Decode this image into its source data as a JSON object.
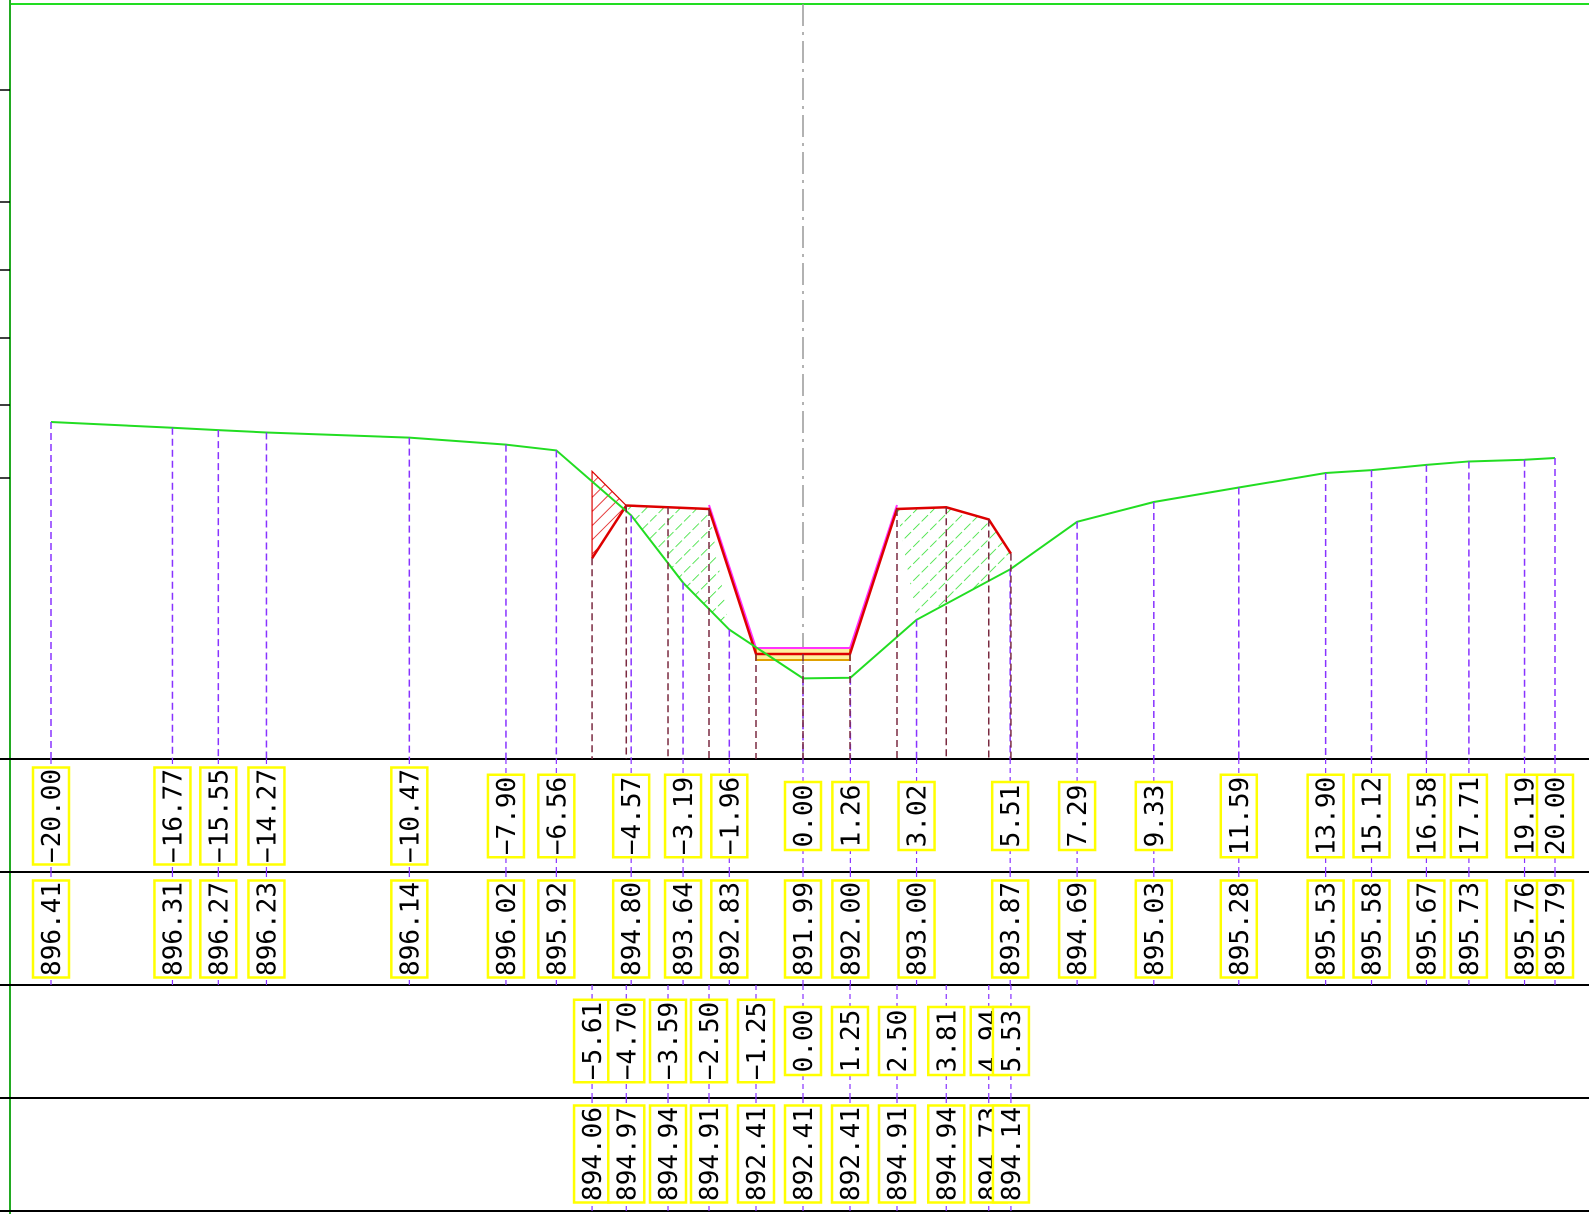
{
  "colors": {
    "ground": "#22dd22",
    "design": "#dd0000",
    "subgrade": "#ff33ff",
    "surface": "#e0a000",
    "pavement_fill": "#fff0a0",
    "cut_hatch": "#22dd22",
    "fill_hatch": "#dd0000",
    "leader": "#8833ff",
    "design_leader": "#7a2a40",
    "centerline": "#999999",
    "label_box": "#ffff00",
    "frame": "#000000",
    "left_border": "#22aa22"
  },
  "rows": {
    "ground_offsets": [
      {
        "x": -20.0,
        "label": "−20.00"
      },
      {
        "x": -16.77,
        "label": "−16.77"
      },
      {
        "x": -15.55,
        "label": "−15.55"
      },
      {
        "x": -14.27,
        "label": "−14.27"
      },
      {
        "x": -10.47,
        "label": "−10.47"
      },
      {
        "x": -7.9,
        "label": "−7.90"
      },
      {
        "x": -6.56,
        "label": "−6.56"
      },
      {
        "x": -4.57,
        "label": "−4.57"
      },
      {
        "x": -3.19,
        "label": "−3.19"
      },
      {
        "x": -1.96,
        "label": "−1.96"
      },
      {
        "x": 0.0,
        "label": "0.00"
      },
      {
        "x": 1.26,
        "label": "1.26"
      },
      {
        "x": 3.02,
        "label": "3.02"
      },
      {
        "x": 5.51,
        "label": "5.51"
      },
      {
        "x": 7.29,
        "label": "7.29"
      },
      {
        "x": 9.33,
        "label": "9.33"
      },
      {
        "x": 11.59,
        "label": "11.59"
      },
      {
        "x": 13.9,
        "label": "13.90"
      },
      {
        "x": 15.12,
        "label": "15.12"
      },
      {
        "x": 16.58,
        "label": "16.58"
      },
      {
        "x": 17.71,
        "label": "17.71"
      },
      {
        "x": 19.19,
        "label": "19.19"
      },
      {
        "x": 20.0,
        "label": "20.00"
      }
    ],
    "ground_elevations": [
      "896.41",
      "896.31",
      "896.27",
      "896.23",
      "896.14",
      "896.02",
      "895.92",
      "894.80",
      "893.64",
      "892.83",
      "891.99",
      "892.00",
      "893.00",
      "893.87",
      "894.69",
      "895.03",
      "895.28",
      "895.53",
      "895.58",
      "895.67",
      "895.73",
      "895.76",
      "895.79"
    ],
    "design_offsets": [
      {
        "x": -5.61,
        "label": "−5.61"
      },
      {
        "x": -4.7,
        "label": "−4.70"
      },
      {
        "x": -3.59,
        "label": "−3.59"
      },
      {
        "x": -2.5,
        "label": "−2.50"
      },
      {
        "x": -1.25,
        "label": "−1.25"
      },
      {
        "x": 0.0,
        "label": "0.00"
      },
      {
        "x": 1.25,
        "label": "1.25"
      },
      {
        "x": 2.5,
        "label": "2.50"
      },
      {
        "x": 3.81,
        "label": "3.81"
      },
      {
        "x": 4.94,
        "label": "4.94"
      },
      {
        "x": 5.53,
        "label": "5.53"
      }
    ],
    "design_elevations": [
      "894.06",
      "894.97",
      "894.94",
      "894.91",
      "892.41",
      "892.41",
      "892.41",
      "894.91",
      "894.94",
      "894.73",
      "894.14"
    ]
  }
}
